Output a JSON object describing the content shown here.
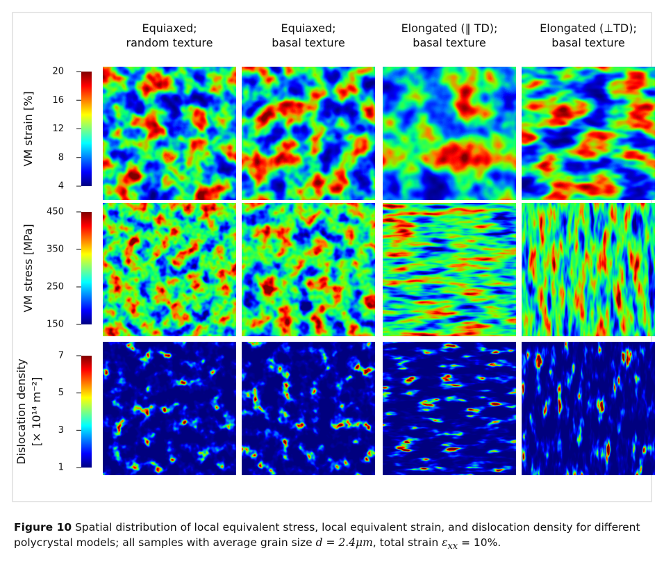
{
  "figure": {
    "columns": [
      [
        "Equiaxed;",
        "random texture"
      ],
      [
        "Equiaxed;",
        "basal texture"
      ],
      [
        "Elongated (‖ TD);",
        "basal texture"
      ],
      [
        "Elongated (⊥TD);",
        "basal texture"
      ]
    ],
    "rows": [
      {
        "label": [
          "VM strain [%]"
        ],
        "range": [
          4,
          20
        ],
        "ticks": [
          4,
          8,
          12,
          16,
          20
        ]
      },
      {
        "label": [
          "VM stress [MPa]"
        ],
        "range": [
          150,
          450
        ],
        "ticks": [
          150,
          250,
          350,
          450
        ]
      },
      {
        "label": [
          "Dislocation density",
          "[× 10¹⁴ m⁻²]"
        ],
        "range": [
          1,
          7
        ],
        "ticks": [
          1,
          3,
          5,
          7
        ]
      }
    ],
    "caption": {
      "label": "Figure 10",
      "text1": "Spatial distribution of local equivalent stress, local equivalent strain, and dislocation density for different polycrystal models; all samples with average grain size",
      "math1": "d = 2.4μm",
      "text2": ", total strain",
      "math2": "ε",
      "sub": "xx",
      "math3": "= 10%."
    }
  }
}
